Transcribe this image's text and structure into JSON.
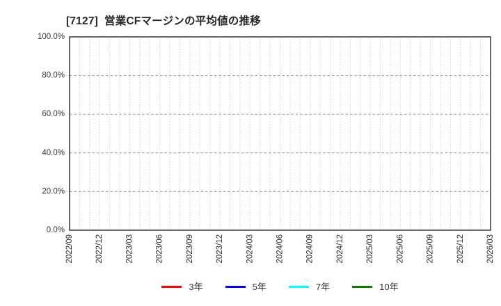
{
  "chart_data": {
    "type": "line",
    "title": "[7127]  営業CFマージンの平均値の推移",
    "x_tick_labels": [
      "2022/09",
      "2022/12",
      "2023/03",
      "2023/06",
      "2023/09",
      "2023/12",
      "2024/03",
      "2024/06",
      "2024/09",
      "2024/12",
      "2025/03",
      "2025/06",
      "2025/09",
      "2025/12",
      "2026/03"
    ],
    "x_minor_divisions_per_major_interval": 3,
    "y_tick_labels": [
      "0.0%",
      "20.0%",
      "40.0%",
      "60.0%",
      "80.0%",
      "100.0%"
    ],
    "ylim": [
      0,
      100
    ],
    "y_tick_step": 20,
    "grid": true,
    "legend_position": "bottom",
    "series": [
      {
        "name": "3年",
        "color": "#ff0000",
        "values": []
      },
      {
        "name": "5年",
        "color": "#0000ff",
        "values": []
      },
      {
        "name": "7年",
        "color": "#00ffff",
        "values": []
      },
      {
        "name": "10年",
        "color": "#008000",
        "values": []
      }
    ]
  },
  "colors": {
    "title": "#262626",
    "axis_labels": "#333333",
    "frame": "#262626",
    "h_gridline": "#999999",
    "v_gridline": "#b8b8b8",
    "background": "#ffffff"
  }
}
